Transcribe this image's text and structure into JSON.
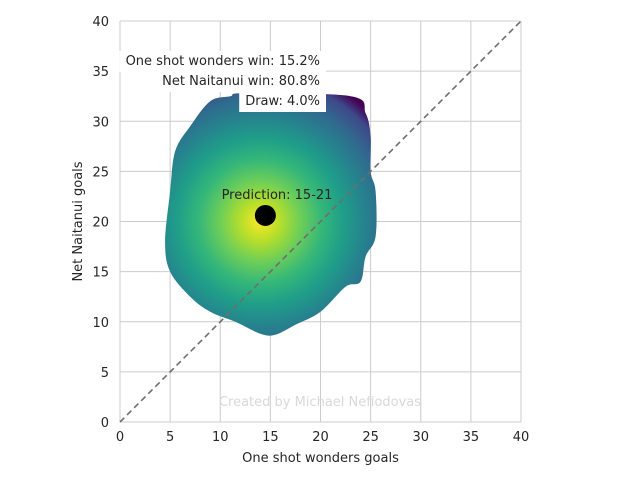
{
  "chart_data": {
    "type": "heatmap",
    "title": "",
    "xlabel": "One shot wonders goals",
    "ylabel": "Net Naitanui goals",
    "xlim": [
      0,
      40
    ],
    "ylim": [
      0,
      40
    ],
    "xticks": [
      0,
      5,
      10,
      15,
      20,
      25,
      30,
      35,
      40
    ],
    "yticks": [
      0,
      5,
      10,
      15,
      20,
      25,
      30,
      35,
      40
    ],
    "grid": true,
    "colormap": "viridis",
    "density_outline": [
      [
        23.0,
        32.5
      ],
      [
        24.5,
        30.8
      ],
      [
        25.0,
        28.5
      ],
      [
        25.0,
        25.0
      ],
      [
        25.5,
        23.0
      ],
      [
        25.5,
        18.5
      ],
      [
        24.5,
        16.5
      ],
      [
        24.0,
        14.0
      ],
      [
        22.5,
        13.5
      ],
      [
        20.0,
        11.0
      ],
      [
        17.5,
        9.7
      ],
      [
        15.5,
        8.7
      ],
      [
        14.0,
        8.8
      ],
      [
        11.5,
        10.0
      ],
      [
        9.0,
        11.0
      ],
      [
        7.0,
        12.5
      ],
      [
        5.0,
        15.0
      ],
      [
        4.5,
        18.0
      ],
      [
        5.0,
        23.0
      ],
      [
        5.5,
        27.0
      ],
      [
        7.0,
        29.5
      ],
      [
        9.0,
        32.0
      ],
      [
        11.0,
        32.5
      ],
      [
        12.5,
        32.8
      ]
    ],
    "density_peak": [
      14.0,
      20.0
    ],
    "prediction_point": [
      14.5,
      20.6
    ],
    "diagonal": [
      [
        0,
        0
      ],
      [
        40,
        40
      ]
    ],
    "annotations": {
      "team1_win": "One shot wonders win: 15.2%",
      "team2_win": "Net Naitanui win: 80.8%",
      "draw": "Draw: 4.0%",
      "prediction": "Prediction: 15-21",
      "watermark": "Created by Michael Nefiodovas"
    },
    "colors": {
      "grid": "#cccccc",
      "diagonal": "#6e6e6e",
      "point": "#000000",
      "text": "#262626",
      "watermark": "#d9d9d9"
    }
  }
}
